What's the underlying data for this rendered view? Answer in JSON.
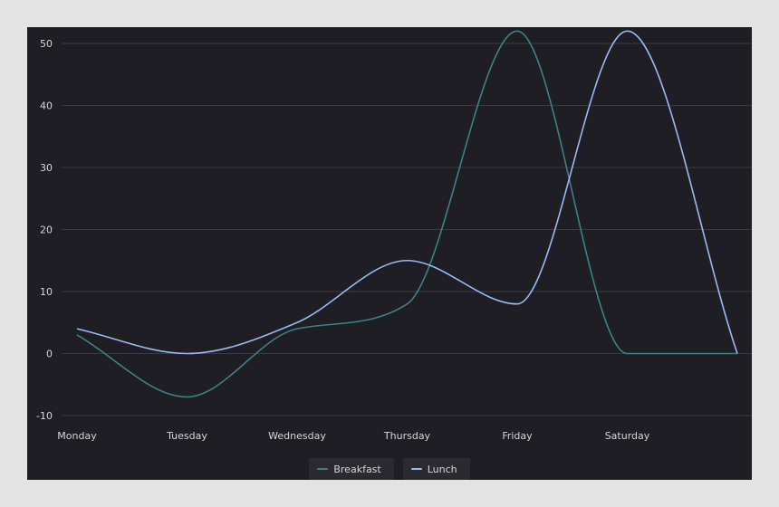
{
  "chart_data": {
    "type": "line",
    "categories": [
      "Monday",
      "Tuesday",
      "Wednesday",
      "Thursday",
      "Friday",
      "Saturday",
      ""
    ],
    "series": [
      {
        "name": "Breakfast",
        "color": "#3f7f86",
        "values": [
          3,
          -7,
          4,
          8,
          52,
          0,
          0
        ]
      },
      {
        "name": "Lunch",
        "color": "#9ab8f5",
        "values": [
          4,
          0,
          5,
          15,
          8,
          52,
          0
        ]
      }
    ],
    "ylim": [
      -10,
      50
    ],
    "yticks": [
      -10,
      0,
      10,
      20,
      30,
      40,
      50
    ],
    "grid": true,
    "smooth": true,
    "legend_position": "bottom",
    "title": "",
    "xlabel": "",
    "ylabel": ""
  },
  "colors": {
    "background": "#1f1e24",
    "frame": "#e3e3e3",
    "grid": "#3a3940",
    "text": "#d6d6d6"
  }
}
